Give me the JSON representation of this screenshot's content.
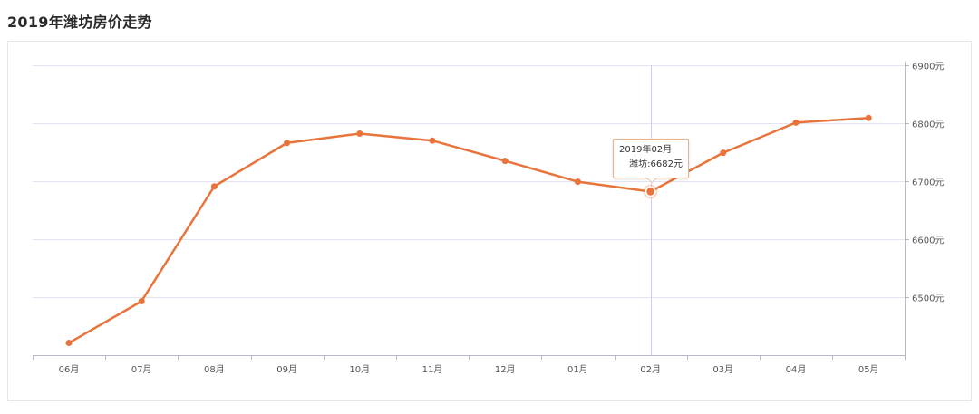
{
  "page": {
    "title": "2019年潍坊房价走势"
  },
  "chart_data": {
    "type": "line",
    "title": "2019年潍坊房价走势",
    "categories": [
      "06月",
      "07月",
      "08月",
      "09月",
      "10月",
      "11月",
      "12月",
      "01月",
      "02月",
      "03月",
      "04月",
      "05月"
    ],
    "series": [
      {
        "name": "潍坊",
        "values": [
          6421,
          6493,
          6691,
          6766,
          6782,
          6770,
          6735,
          6699,
          6682,
          6749,
          6801,
          6809
        ],
        "color": "#e8743b"
      }
    ],
    "ylim": [
      6400,
      6900
    ],
    "yticks": [
      6500,
      6600,
      6700,
      6800,
      6900
    ],
    "ytick_labels": [
      "6500元",
      "6600元",
      "6700元",
      "6800元",
      "6900元"
    ],
    "y_axis_position": "right",
    "grid": true,
    "legend": "none",
    "highlight": {
      "category_index": 8,
      "crosshair": true,
      "tooltip_title": "2019年02月",
      "tooltip_value": "潍坊:6682元"
    }
  }
}
